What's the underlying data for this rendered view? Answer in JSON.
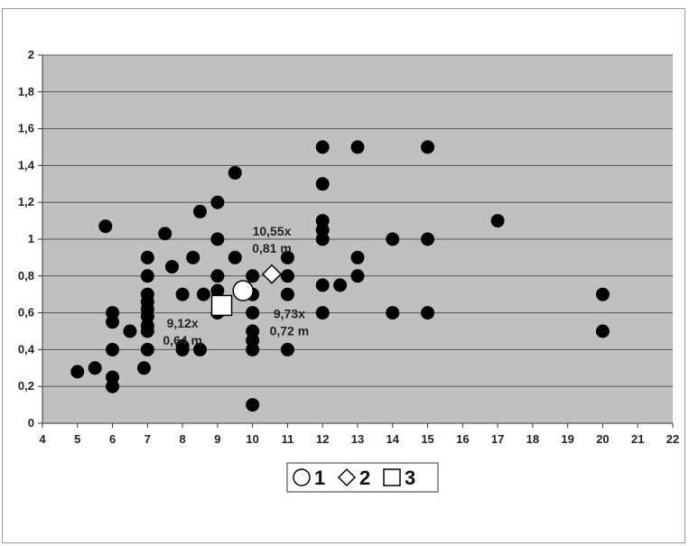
{
  "chart_data": {
    "type": "scatter",
    "xlim": [
      4,
      22
    ],
    "ylim": [
      0,
      2
    ],
    "x_ticks": [
      "4",
      "5",
      "6",
      "7",
      "8",
      "9",
      "10",
      "11",
      "12",
      "13",
      "14",
      "15",
      "16",
      "17",
      "18",
      "19",
      "20",
      "21",
      "22"
    ],
    "y_ticks": [
      "0",
      "0,2",
      "0,4",
      "0,6",
      "0,8",
      "1",
      "1,2",
      "1,4",
      "1,6",
      "1,8",
      "2"
    ],
    "grid": true,
    "plot_background": "#c0c0c0",
    "point_color": "#000000",
    "points": [
      [
        5.0,
        0.28
      ],
      [
        5.5,
        0.3
      ],
      [
        5.8,
        1.07
      ],
      [
        6.0,
        0.6
      ],
      [
        6.0,
        0.55
      ],
      [
        6.0,
        0.4
      ],
      [
        6.0,
        0.25
      ],
      [
        6.0,
        0.2
      ],
      [
        6.5,
        0.5
      ],
      [
        6.9,
        0.3
      ],
      [
        7.0,
        0.9
      ],
      [
        7.0,
        0.8
      ],
      [
        7.0,
        0.7
      ],
      [
        7.0,
        0.66
      ],
      [
        7.0,
        0.62
      ],
      [
        7.0,
        0.58
      ],
      [
        7.0,
        0.53
      ],
      [
        7.0,
        0.5
      ],
      [
        7.0,
        0.4
      ],
      [
        7.5,
        1.03
      ],
      [
        7.7,
        0.85
      ],
      [
        8.0,
        0.7
      ],
      [
        8.0,
        0.42
      ],
      [
        8.0,
        0.4
      ],
      [
        8.3,
        0.9
      ],
      [
        8.5,
        0.4
      ],
      [
        8.5,
        1.15
      ],
      [
        8.6,
        0.7
      ],
      [
        9.0,
        1.2
      ],
      [
        9.0,
        1.0
      ],
      [
        9.0,
        0.8
      ],
      [
        9.0,
        0.72
      ],
      [
        9.0,
        0.6
      ],
      [
        9.5,
        0.9
      ],
      [
        9.5,
        1.36
      ],
      [
        10.0,
        0.8
      ],
      [
        10.0,
        0.7
      ],
      [
        10.0,
        0.6
      ],
      [
        10.0,
        0.5
      ],
      [
        10.0,
        0.45
      ],
      [
        10.0,
        0.4
      ],
      [
        10.0,
        0.1
      ],
      [
        11.0,
        0.9
      ],
      [
        11.0,
        0.8
      ],
      [
        11.0,
        0.7
      ],
      [
        11.0,
        0.4
      ],
      [
        12.0,
        1.5
      ],
      [
        12.0,
        1.3
      ],
      [
        12.0,
        1.1
      ],
      [
        12.0,
        1.05
      ],
      [
        12.0,
        1.0
      ],
      [
        12.0,
        0.75
      ],
      [
        12.0,
        0.6
      ],
      [
        12.5,
        0.75
      ],
      [
        13.0,
        1.5
      ],
      [
        13.0,
        0.9
      ],
      [
        13.0,
        0.8
      ],
      [
        14.0,
        1.0
      ],
      [
        14.0,
        0.6
      ],
      [
        15.0,
        1.5
      ],
      [
        15.0,
        1.0
      ],
      [
        15.0,
        0.6
      ],
      [
        17.0,
        1.1
      ],
      [
        20.0,
        0.7
      ],
      [
        20.0,
        0.5
      ]
    ],
    "markers": [
      {
        "id": "1",
        "shape": "circle",
        "x": 9.73,
        "y": 0.72
      },
      {
        "id": "2",
        "shape": "diamond",
        "x": 10.55,
        "y": 0.81
      },
      {
        "id": "3",
        "shape": "square",
        "x": 9.12,
        "y": 0.64
      }
    ],
    "annotations": [
      {
        "lines": [
          "10,55x",
          "0,81 m"
        ],
        "x": 10.55,
        "y": 1.02
      },
      {
        "lines": [
          "9,73x",
          "0,72 m"
        ],
        "x": 11.05,
        "y": 0.57
      },
      {
        "lines": [
          "9,12x",
          "0,64 m"
        ],
        "x": 8.0,
        "y": 0.52
      }
    ],
    "legend": {
      "placement": "bottom-center",
      "entries": [
        {
          "shape": "circle",
          "label": "1"
        },
        {
          "shape": "diamond",
          "label": "2"
        },
        {
          "shape": "square",
          "label": "3"
        }
      ]
    }
  }
}
